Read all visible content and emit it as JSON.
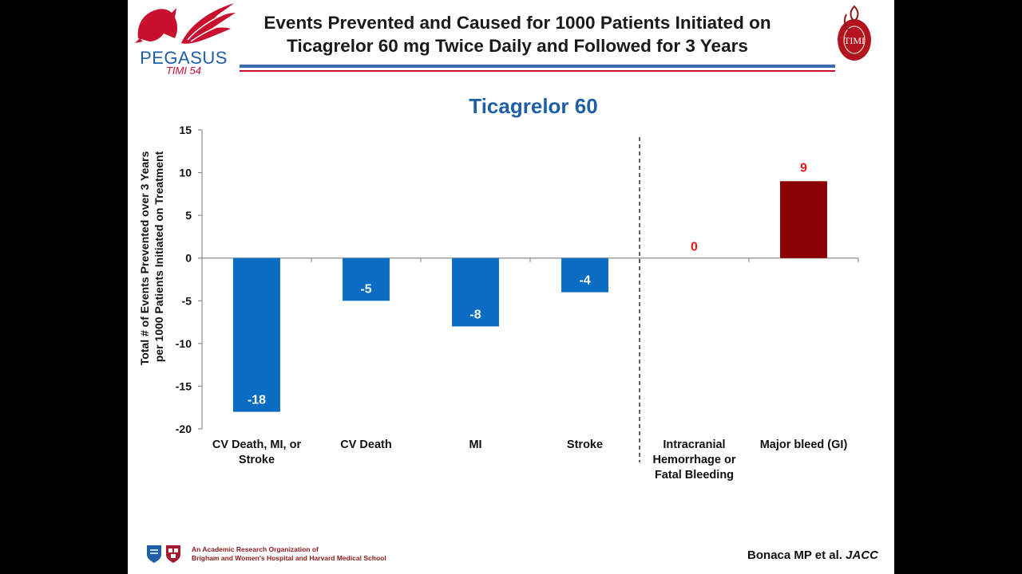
{
  "header": {
    "title_line1": "Events Prevented and Caused for 1000 Patients Initiated on",
    "title_line2": "Ticagrelor 60 mg Twice Daily and Followed for 3 Years",
    "logo_left_text": "PEGASUS",
    "logo_left_sub": "TIMI 54",
    "logo_right_text": "TIMI"
  },
  "chart_data": {
    "type": "bar",
    "title": "Ticagrelor 60",
    "ylabel_line1": "Total # of Events Prevented over 3 Years",
    "ylabel_line2": "per 1000 Patients Initiated on Treatment",
    "ylim": [
      -20,
      15
    ],
    "yticks": [
      15,
      10,
      5,
      0,
      -5,
      -10,
      -15,
      -20
    ],
    "categories": [
      [
        "CV Death, MI, or",
        "Stroke"
      ],
      [
        "CV Death"
      ],
      [
        "MI"
      ],
      [
        "Stroke"
      ],
      [
        "Intracranial",
        "Hemorrhage or",
        "Fatal Bleeding"
      ],
      [
        "Major bleed (GI)"
      ]
    ],
    "values": [
      -18,
      -5,
      -8,
      -4,
      0,
      9
    ],
    "data_labels": [
      "-18",
      "-5",
      "-8",
      "-4",
      "0",
      "9"
    ],
    "bar_colors": [
      "#0a6cc2",
      "#0a6cc2",
      "#0a6cc2",
      "#0a6cc2",
      "#8b0000",
      "#8b0000"
    ],
    "label_colors": [
      "#ffffff",
      "#ffffff",
      "#ffffff",
      "#ffffff",
      "#e01b1b",
      "#e01b1b"
    ],
    "divider_after_index": 3,
    "grid": false,
    "title_color": "#1f5fa8"
  },
  "footer": {
    "org_line1": "An Academic Research Organization of",
    "org_line2": "Brigham and Women's Hospital and Harvard Medical School",
    "citation_authors": "Bonaca MP et al. ",
    "citation_journal": "JACC"
  }
}
